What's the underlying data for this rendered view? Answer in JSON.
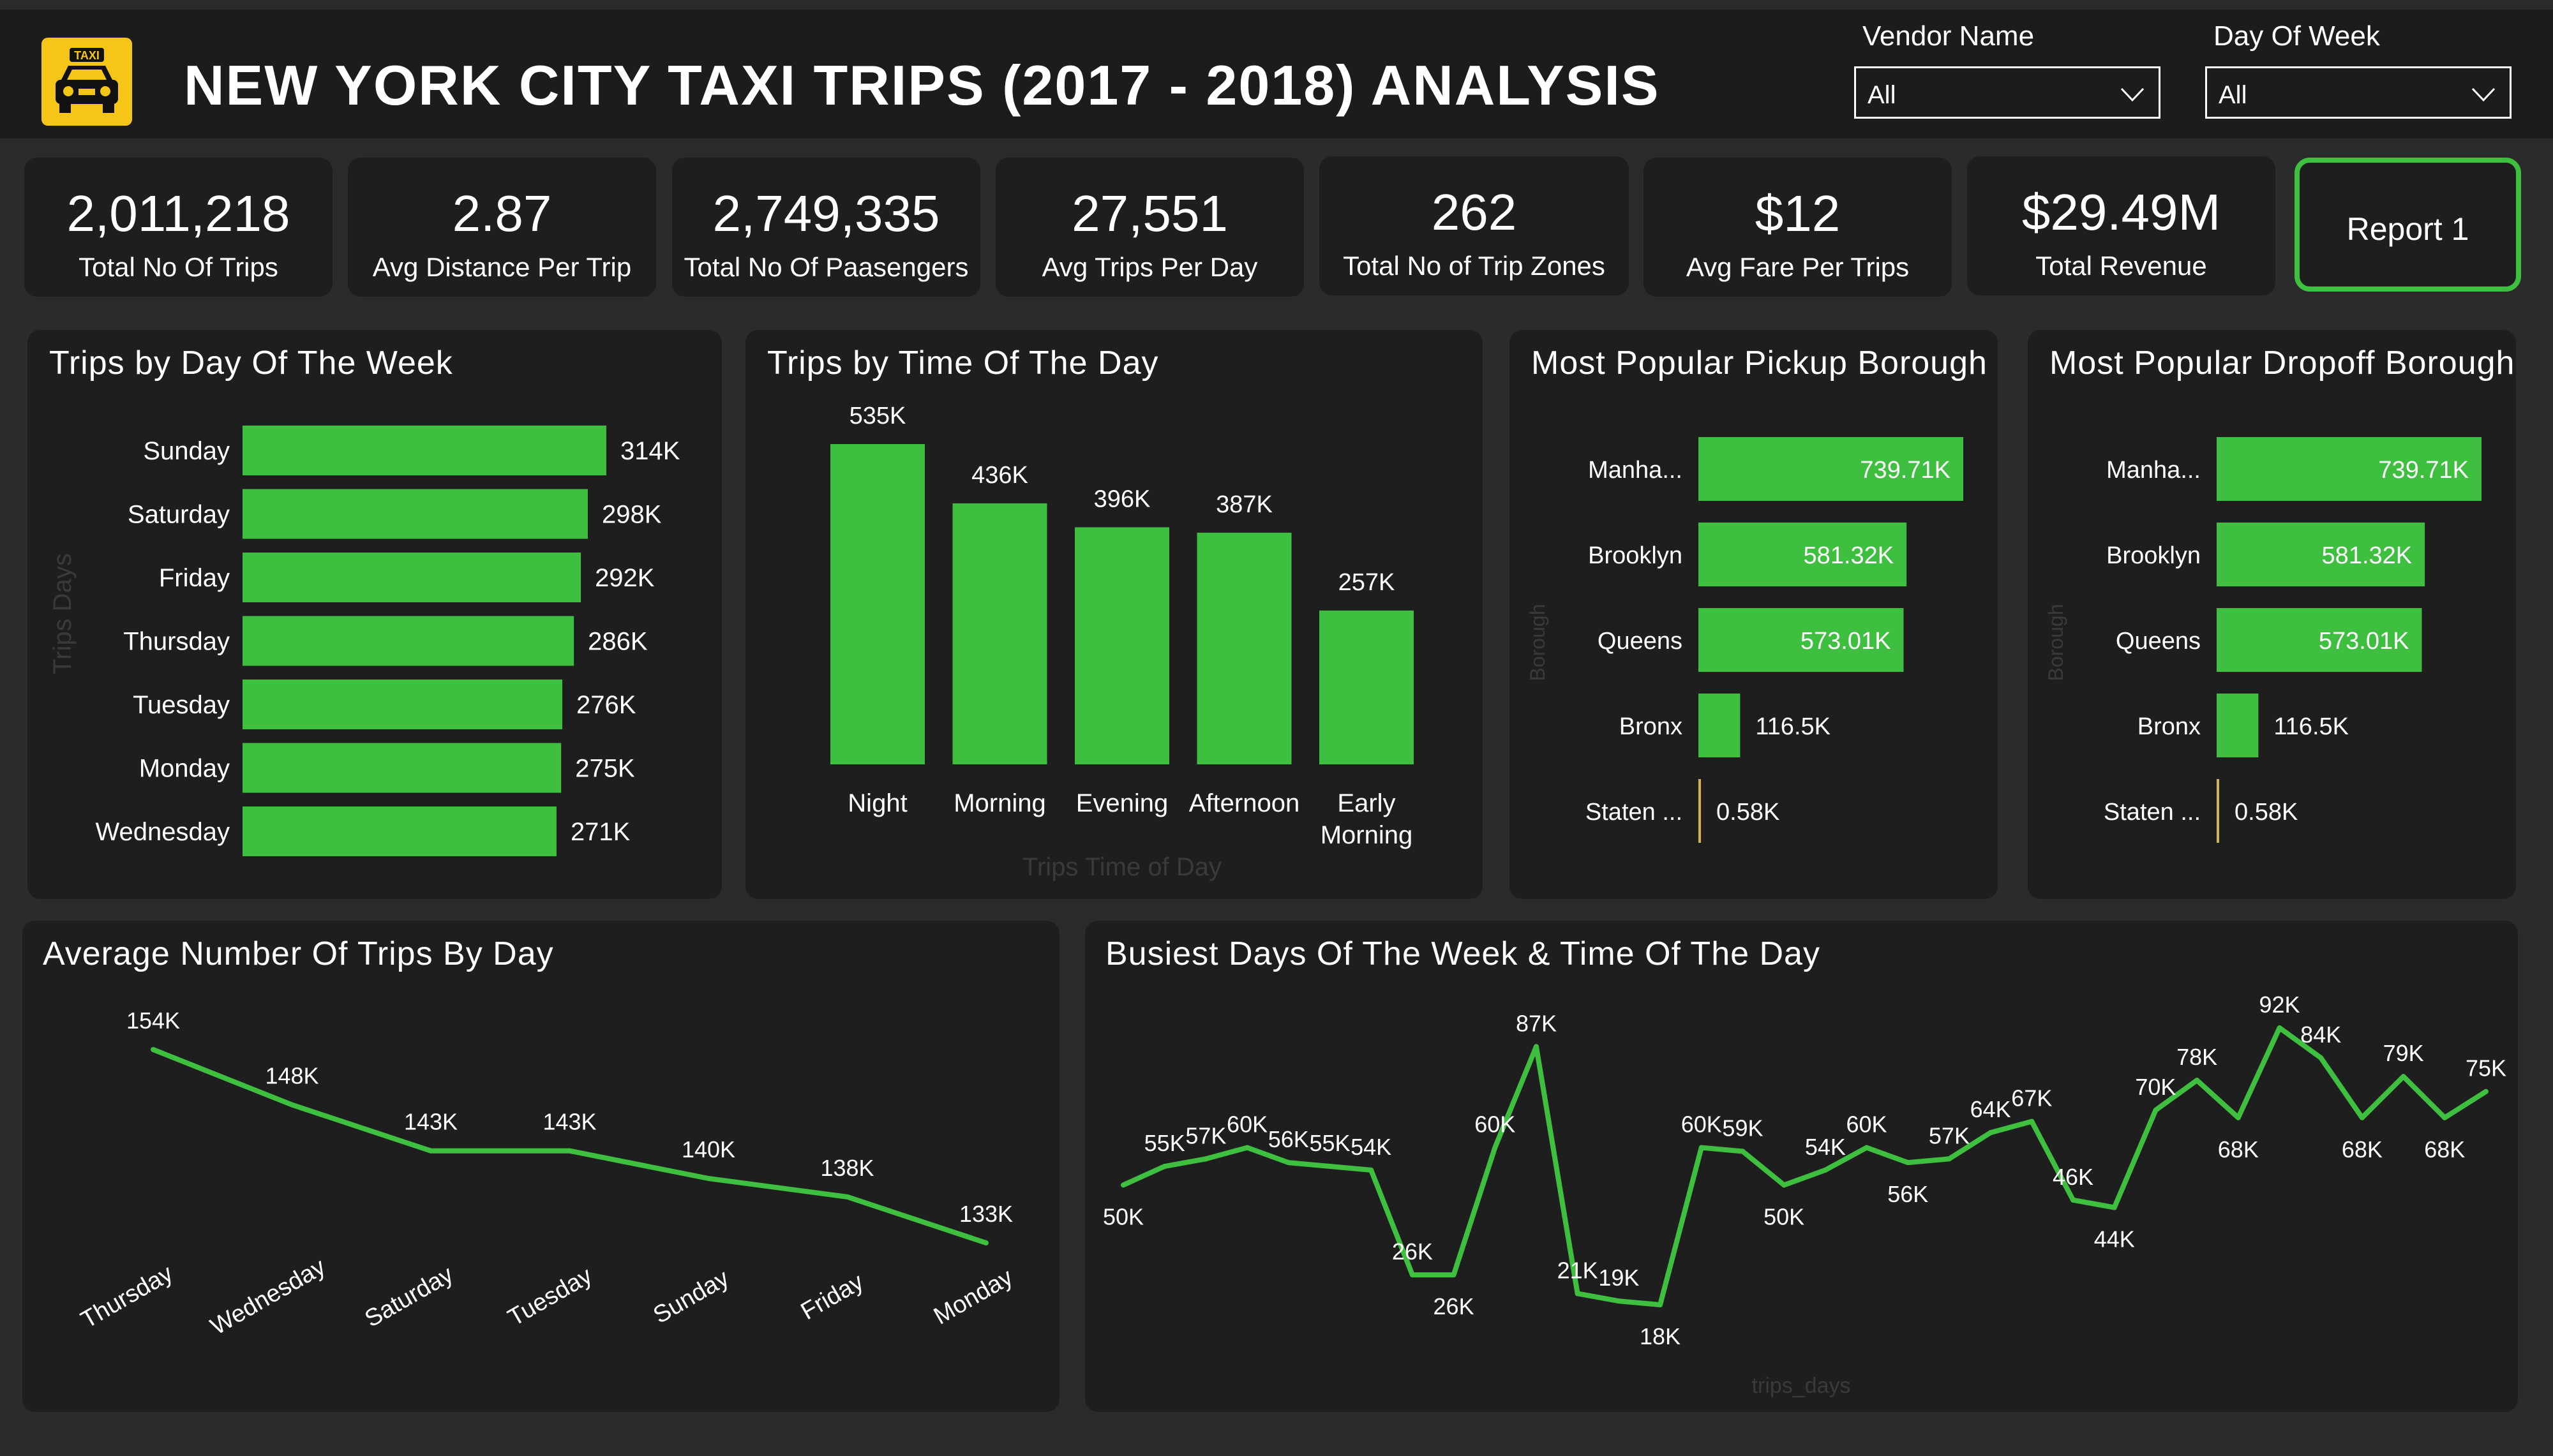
{
  "header": {
    "title": "NEW YORK CITY TAXI TRIPS (2017 - 2018) ANALYSIS",
    "logo_text": "TAXI",
    "logo_icon": "taxi-icon",
    "accent": "#3fbf3f"
  },
  "filters": {
    "vendor": {
      "label": "Vendor Name",
      "value": "All"
    },
    "day": {
      "label": "Day Of Week",
      "value": "All"
    }
  },
  "kpis": [
    {
      "value": "2,011,218",
      "label": "Total No Of Trips"
    },
    {
      "value": "2.87",
      "label": "Avg Distance Per Trip"
    },
    {
      "value": "2,749,335",
      "label": "Total No Of Paasengers"
    },
    {
      "value": "27,551",
      "label": "Avg Trips Per Day"
    },
    {
      "value": "262",
      "label": "Total No of Trip Zones"
    },
    {
      "value": "$12",
      "label": "Avg Fare Per Trips"
    },
    {
      "value": "$29.49M",
      "label": "Total Revenue"
    }
  ],
  "report_button": {
    "label": "Report 1"
  },
  "chart_data": [
    {
      "type": "bar",
      "orientation": "horizontal",
      "title": "Trips by Day Of The Week",
      "ylabel": "Trips Days",
      "categories": [
        "Sunday",
        "Saturday",
        "Friday",
        "Thursday",
        "Tuesday",
        "Monday",
        "Wednesday"
      ],
      "values": [
        314000,
        298000,
        292000,
        286000,
        276000,
        275000,
        271000
      ],
      "labels": [
        "314K",
        "298K",
        "292K",
        "286K",
        "276K",
        "275K",
        "271K"
      ],
      "color": "#3fbf3f"
    },
    {
      "type": "bar",
      "orientation": "vertical",
      "title": "Trips by Time Of The Day",
      "xlabel": "Trips Time of Day",
      "categories": [
        "Night",
        "Morning",
        "Evening",
        "Afternoon",
        "Early Morning"
      ],
      "values": [
        535000,
        436000,
        396000,
        387000,
        257000
      ],
      "labels": [
        "535K",
        "436K",
        "396K",
        "387K",
        "257K"
      ],
      "color": "#3fbf3f"
    },
    {
      "type": "bar",
      "orientation": "horizontal",
      "title": "Most Popular Pickup Borough",
      "ylabel": "Borough",
      "categories": [
        "Manha...",
        "Brooklyn",
        "Queens",
        "Bronx",
        "Staten ..."
      ],
      "values": [
        739710,
        581320,
        573010,
        116500,
        580
      ],
      "labels": [
        "739.71K",
        "581.32K",
        "573.01K",
        "116.5K",
        "0.58K"
      ],
      "color": "#3fbf3f",
      "minor_color": "#d4b44a"
    },
    {
      "type": "bar",
      "orientation": "horizontal",
      "title": "Most Popular Dropoff Borough",
      "ylabel": "Borough",
      "categories": [
        "Manha...",
        "Brooklyn",
        "Queens",
        "Bronx",
        "Staten ..."
      ],
      "values": [
        739710,
        581320,
        573010,
        116500,
        580
      ],
      "labels": [
        "739.71K",
        "581.32K",
        "573.01K",
        "116.5K",
        "0.58K"
      ],
      "color": "#3fbf3f",
      "minor_color": "#d4b44a"
    },
    {
      "type": "line",
      "title": "Average Number Of Trips By Day",
      "categories": [
        "Thursday",
        "Wednesday",
        "Saturday",
        "Tuesday",
        "Sunday",
        "Friday",
        "Monday"
      ],
      "values": [
        154000,
        148000,
        143000,
        143000,
        140000,
        138000,
        133000
      ],
      "labels": [
        "154K",
        "148K",
        "143K",
        "143K",
        "140K",
        "138K",
        "133K"
      ],
      "color": "#3fbf3f"
    },
    {
      "type": "line",
      "title": "Busiest Days Of The Week & Time Of The Day",
      "xlabel": "trips_days",
      "values": [
        50,
        55,
        57,
        60,
        56,
        55,
        54,
        26,
        26,
        60,
        87,
        21,
        19,
        18,
        60,
        59,
        50,
        54,
        60,
        56,
        57,
        64,
        67,
        46,
        44,
        70,
        78,
        68,
        92,
        84,
        68,
        79,
        68,
        75
      ],
      "labels": [
        "50K",
        "55K",
        "57K",
        "60K",
        "56K",
        "55K",
        "54K",
        "26K",
        "26K",
        "60K",
        "87K",
        "21K",
        "19K",
        "18K",
        "60K",
        "59K",
        "50K",
        "54K",
        "60K",
        "56K",
        "57K",
        "64K",
        "67K",
        "46K",
        "44K",
        "70K",
        "78K",
        "68K",
        "92K",
        "84K",
        "68K",
        "79K",
        "68K",
        "75K"
      ],
      "label_side": [
        "b",
        "t",
        "t",
        "t",
        "t",
        "t",
        "t",
        "t",
        "b",
        "t",
        "t",
        "t",
        "t",
        "b",
        "t",
        "t",
        "b",
        "t",
        "t",
        "b",
        "t",
        "t",
        "t",
        "t",
        "b",
        "t",
        "t",
        "b",
        "t",
        "t",
        "b",
        "t",
        "b",
        "t"
      ],
      "unit": "K",
      "color": "#3fbf3f"
    }
  ]
}
